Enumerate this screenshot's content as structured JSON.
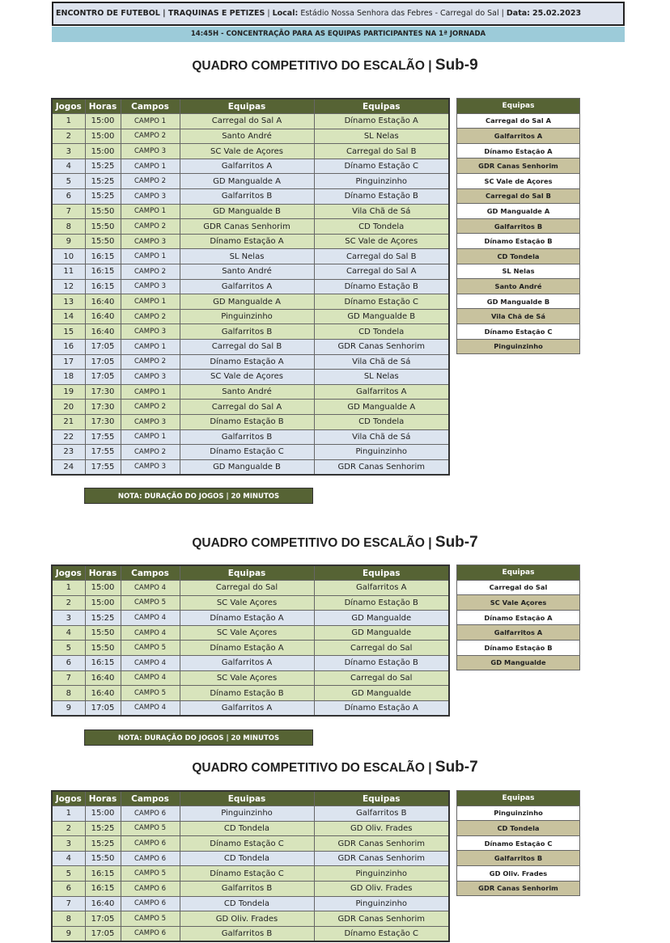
{
  "header": {
    "event_label": "ENCONTRO DE FUTEBOL | TRAQUINAS E PETIZES",
    "local_label": "Local:",
    "local_value": "Estádio Nossa Senhora das Febres - Carregal do Sal",
    "data_label": "Data:",
    "data_value": "25.02.2023",
    "concentration": "14:45H - CONCENTRAÇÃO PARA AS EQUIPAS PARTICIPANTES NA 1ª JORNADA"
  },
  "colors": {
    "header_green": "#566334",
    "row_green": "#d8e4bc",
    "row_blue": "#dce4ef",
    "team_tan": "#c8c29e",
    "concentration_blue": "#9ccbd9"
  },
  "columns": [
    "Jogos",
    "Horas",
    "Campos",
    "Equipas",
    "Equipas"
  ],
  "side_header": "Equipas",
  "sections": [
    {
      "title_prefix": "QUADRO COMPETITIVO DO ESCALÃO |",
      "title_escalao": "Sub-9",
      "games": [
        [
          "1",
          "15:00",
          "CAMPO 1",
          "Carregal do Sal A",
          "Dínamo Estação A",
          "green"
        ],
        [
          "2",
          "15:00",
          "CAMPO 2",
          "Santo André",
          "SL Nelas",
          "green"
        ],
        [
          "3",
          "15:00",
          "CAMPO 3",
          "SC Vale de Açores",
          "Carregal do Sal B",
          "green"
        ],
        [
          "4",
          "15:25",
          "CAMPO 1",
          "Galfarritos A",
          "Dínamo Estação C",
          "blue"
        ],
        [
          "5",
          "15:25",
          "CAMPO 2",
          "GD Mangualde A",
          "Pinguinzinho",
          "blue"
        ],
        [
          "6",
          "15:25",
          "CAMPO 3",
          "Galfarritos B",
          "Dínamo Estação B",
          "blue"
        ],
        [
          "7",
          "15:50",
          "CAMPO 1",
          "GD Mangualde B",
          "Vila Chã de Sá",
          "green"
        ],
        [
          "8",
          "15:50",
          "CAMPO 2",
          "GDR Canas Senhorim",
          "CD Tondela",
          "green"
        ],
        [
          "9",
          "15:50",
          "CAMPO 3",
          "Dínamo Estação A",
          "SC Vale de Açores",
          "green"
        ],
        [
          "10",
          "16:15",
          "CAMPO 1",
          "SL Nelas",
          "Carregal do Sal B",
          "blue"
        ],
        [
          "11",
          "16:15",
          "CAMPO 2",
          "Santo André",
          "Carregal do Sal A",
          "blue"
        ],
        [
          "12",
          "16:15",
          "CAMPO 3",
          "Galfarritos A",
          "Dínamo Estação B",
          "blue"
        ],
        [
          "13",
          "16:40",
          "CAMPO 1",
          "GD Mangualde A",
          "Dínamo Estação C",
          "green"
        ],
        [
          "14",
          "16:40",
          "CAMPO 2",
          "Pinguinzinho",
          "GD Mangualde B",
          "green"
        ],
        [
          "15",
          "16:40",
          "CAMPO 3",
          "Galfarritos B",
          "CD Tondela",
          "green"
        ],
        [
          "16",
          "17:05",
          "CAMPO 1",
          "Carregal do Sal B",
          "GDR Canas Senhorim",
          "blue"
        ],
        [
          "17",
          "17:05",
          "CAMPO 2",
          "Dínamo Estação A",
          "Vila Chã de Sá",
          "blue"
        ],
        [
          "18",
          "17:05",
          "CAMPO 3",
          "SC Vale de Açores",
          "SL Nelas",
          "blue"
        ],
        [
          "19",
          "17:30",
          "CAMPO 1",
          "Santo André",
          "Galfarritos A",
          "green"
        ],
        [
          "20",
          "17:30",
          "CAMPO 2",
          "Carregal do Sal A",
          "GD Mangualde A",
          "green"
        ],
        [
          "21",
          "17:30",
          "CAMPO 3",
          "Dínamo Estação B",
          "CD Tondela",
          "green"
        ],
        [
          "22",
          "17:55",
          "CAMPO 1",
          "Galfarritos B",
          "Vila Chã de Sá",
          "blue"
        ],
        [
          "23",
          "17:55",
          "CAMPO 2",
          "Dínamo Estação C",
          "Pinguinzinho",
          "blue"
        ],
        [
          "24",
          "17:55",
          "CAMPO 3",
          "GD Mangualde B",
          "GDR Canas Senhorim",
          "blue"
        ]
      ],
      "teams": [
        "Carregal do Sal A",
        "Galfarritos A",
        "Dínamo Estação A",
        "GDR Canas Senhorim",
        "SC Vale de Açores",
        "Carregal do Sal B",
        "GD Mangualde A",
        "Galfarritos B",
        "Dínamo Estação B",
        "CD Tondela",
        "SL Nelas",
        "Santo André",
        "GD Mangualde B",
        "Vila Chã de Sá",
        "Dínamo Estação C",
        "Pinguinzinho"
      ],
      "nota": "NOTA: DURAÇÃO DO JOGOS  |  20  MINUTOS"
    },
    {
      "title_prefix": "QUADRO COMPETITIVO DO ESCALÃO |",
      "title_escalao": "Sub-7",
      "games": [
        [
          "1",
          "15:00",
          "CAMPO 4",
          "Carregal do Sal",
          "Galfarritos A",
          "green"
        ],
        [
          "2",
          "15:00",
          "CAMPO 5",
          "SC Vale Açores",
          "Dínamo Estação B",
          "green"
        ],
        [
          "3",
          "15:25",
          "CAMPO 4",
          "Dínamo Estação A",
          "GD Mangualde",
          "blue"
        ],
        [
          "4",
          "15:50",
          "CAMPO 4",
          "SC Vale Açores",
          "GD Mangualde",
          "green"
        ],
        [
          "5",
          "15:50",
          "CAMPO 5",
          "Dínamo Estação A",
          "Carregal do Sal",
          "green"
        ],
        [
          "6",
          "16:15",
          "CAMPO 4",
          "Galfarritos A",
          "Dínamo Estação B",
          "blue"
        ],
        [
          "7",
          "16:40",
          "CAMPO 4",
          "SC Vale Açores",
          "Carregal do Sal",
          "green"
        ],
        [
          "8",
          "16:40",
          "CAMPO 5",
          "Dínamo Estação B",
          "GD Mangualde",
          "green"
        ],
        [
          "9",
          "17:05",
          "CAMPO 4",
          "Galfarritos A",
          "Dínamo Estação A",
          "blue"
        ]
      ],
      "teams": [
        "Carregal do Sal",
        "SC Vale Açores",
        "Dínamo Estação A",
        "Galfarritos A",
        "Dínamo Estação B",
        "GD Mangualde"
      ],
      "nota": "NOTA: DURAÇÃO DO JOGOS  | 20 MINUTOS"
    },
    {
      "title_prefix": "QUADRO COMPETITIVO DO ESCALÃO |",
      "title_escalao": "Sub-7",
      "games": [
        [
          "1",
          "15:00",
          "CAMPO 6",
          "Pinguinzinho",
          "Galfarritos B",
          "blue"
        ],
        [
          "2",
          "15:25",
          "CAMPO 5",
          "CD Tondela",
          "GD Oliv. Frades",
          "green"
        ],
        [
          "3",
          "15:25",
          "CAMPO 6",
          "Dínamo Estação C",
          "GDR Canas Senhorim",
          "green"
        ],
        [
          "4",
          "15:50",
          "CAMPO 6",
          "CD Tondela",
          "GDR Canas Senhorim",
          "blue"
        ],
        [
          "5",
          "16:15",
          "CAMPO 5",
          "Dínamo Estação C",
          "Pinguinzinho",
          "green"
        ],
        [
          "6",
          "16:15",
          "CAMPO 6",
          "Galfarritos B",
          "GD Oliv. Frades",
          "green"
        ],
        [
          "7",
          "16:40",
          "CAMPO 6",
          "CD Tondela",
          "Pinguinzinho",
          "blue"
        ],
        [
          "8",
          "17:05",
          "CAMPO 5",
          "GD Oliv. Frades",
          "GDR Canas Senhorim",
          "green"
        ],
        [
          "9",
          "17:05",
          "CAMPO 6",
          "Galfarritos B",
          "Dínamo Estação C",
          "green"
        ]
      ],
      "teams": [
        "Pinguinzinho",
        "CD Tondela",
        "Dínamo Estação C",
        "Galfarritos B",
        "GD Oliv. Frades",
        "GDR Canas Senhorim"
      ]
    }
  ]
}
